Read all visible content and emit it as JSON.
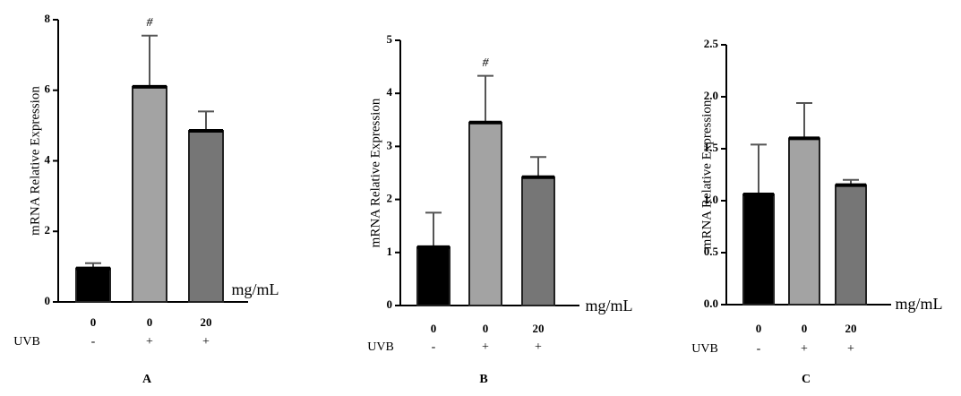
{
  "chart_data": [
    {
      "type": "bar",
      "panel_label": "A",
      "ylabel": "mRNA Relative Expression",
      "unit_label": "mg/mL",
      "row_label": "UVB",
      "categories": [
        "0",
        "0",
        "20"
      ],
      "uvb": [
        "-",
        "+",
        "+"
      ],
      "values": [
        0.95,
        6.1,
        4.85
      ],
      "errors": [
        0.15,
        1.45,
        0.55
      ],
      "colors": [
        "#000000",
        "#a3a3a3",
        "#767676"
      ],
      "bar_annotations": [
        null,
        "#",
        null
      ],
      "ylim": [
        0,
        8
      ],
      "yticks": [
        0,
        2,
        4,
        6,
        8
      ]
    },
    {
      "type": "bar",
      "panel_label": "B",
      "ylabel": "mRNA Relative Expression",
      "unit_label": "mg/mL",
      "row_label": "UVB",
      "categories": [
        "0",
        "0",
        "20"
      ],
      "uvb": [
        "-",
        "+",
        "+"
      ],
      "values": [
        1.1,
        3.45,
        2.42
      ],
      "errors": [
        0.65,
        0.88,
        0.38
      ],
      "colors": [
        "#000000",
        "#a3a3a3",
        "#767676"
      ],
      "bar_annotations": [
        null,
        "#",
        null
      ],
      "ylim": [
        0,
        5
      ],
      "yticks": [
        0,
        1,
        2,
        3,
        4,
        5
      ]
    },
    {
      "type": "bar",
      "panel_label": "C",
      "ylabel": "mRNA Relative Expression",
      "unit_label": "mg/mL",
      "row_label": "UVB",
      "categories": [
        "0",
        "0",
        "20"
      ],
      "uvb": [
        "-",
        "+",
        "+"
      ],
      "values": [
        1.06,
        1.6,
        1.15
      ],
      "errors": [
        0.48,
        0.34,
        0.05
      ],
      "colors": [
        "#000000",
        "#a3a3a3",
        "#767676"
      ],
      "bar_annotations": [
        null,
        null,
        null
      ],
      "ylim": [
        0,
        2.5
      ],
      "yticks": [
        {
          "value": 0,
          "label": "0.0"
        },
        0.5,
        {
          "value": 1,
          "label": "1.0"
        },
        1.5,
        {
          "value": 2,
          "label": "2.0"
        },
        2.5
      ]
    }
  ]
}
